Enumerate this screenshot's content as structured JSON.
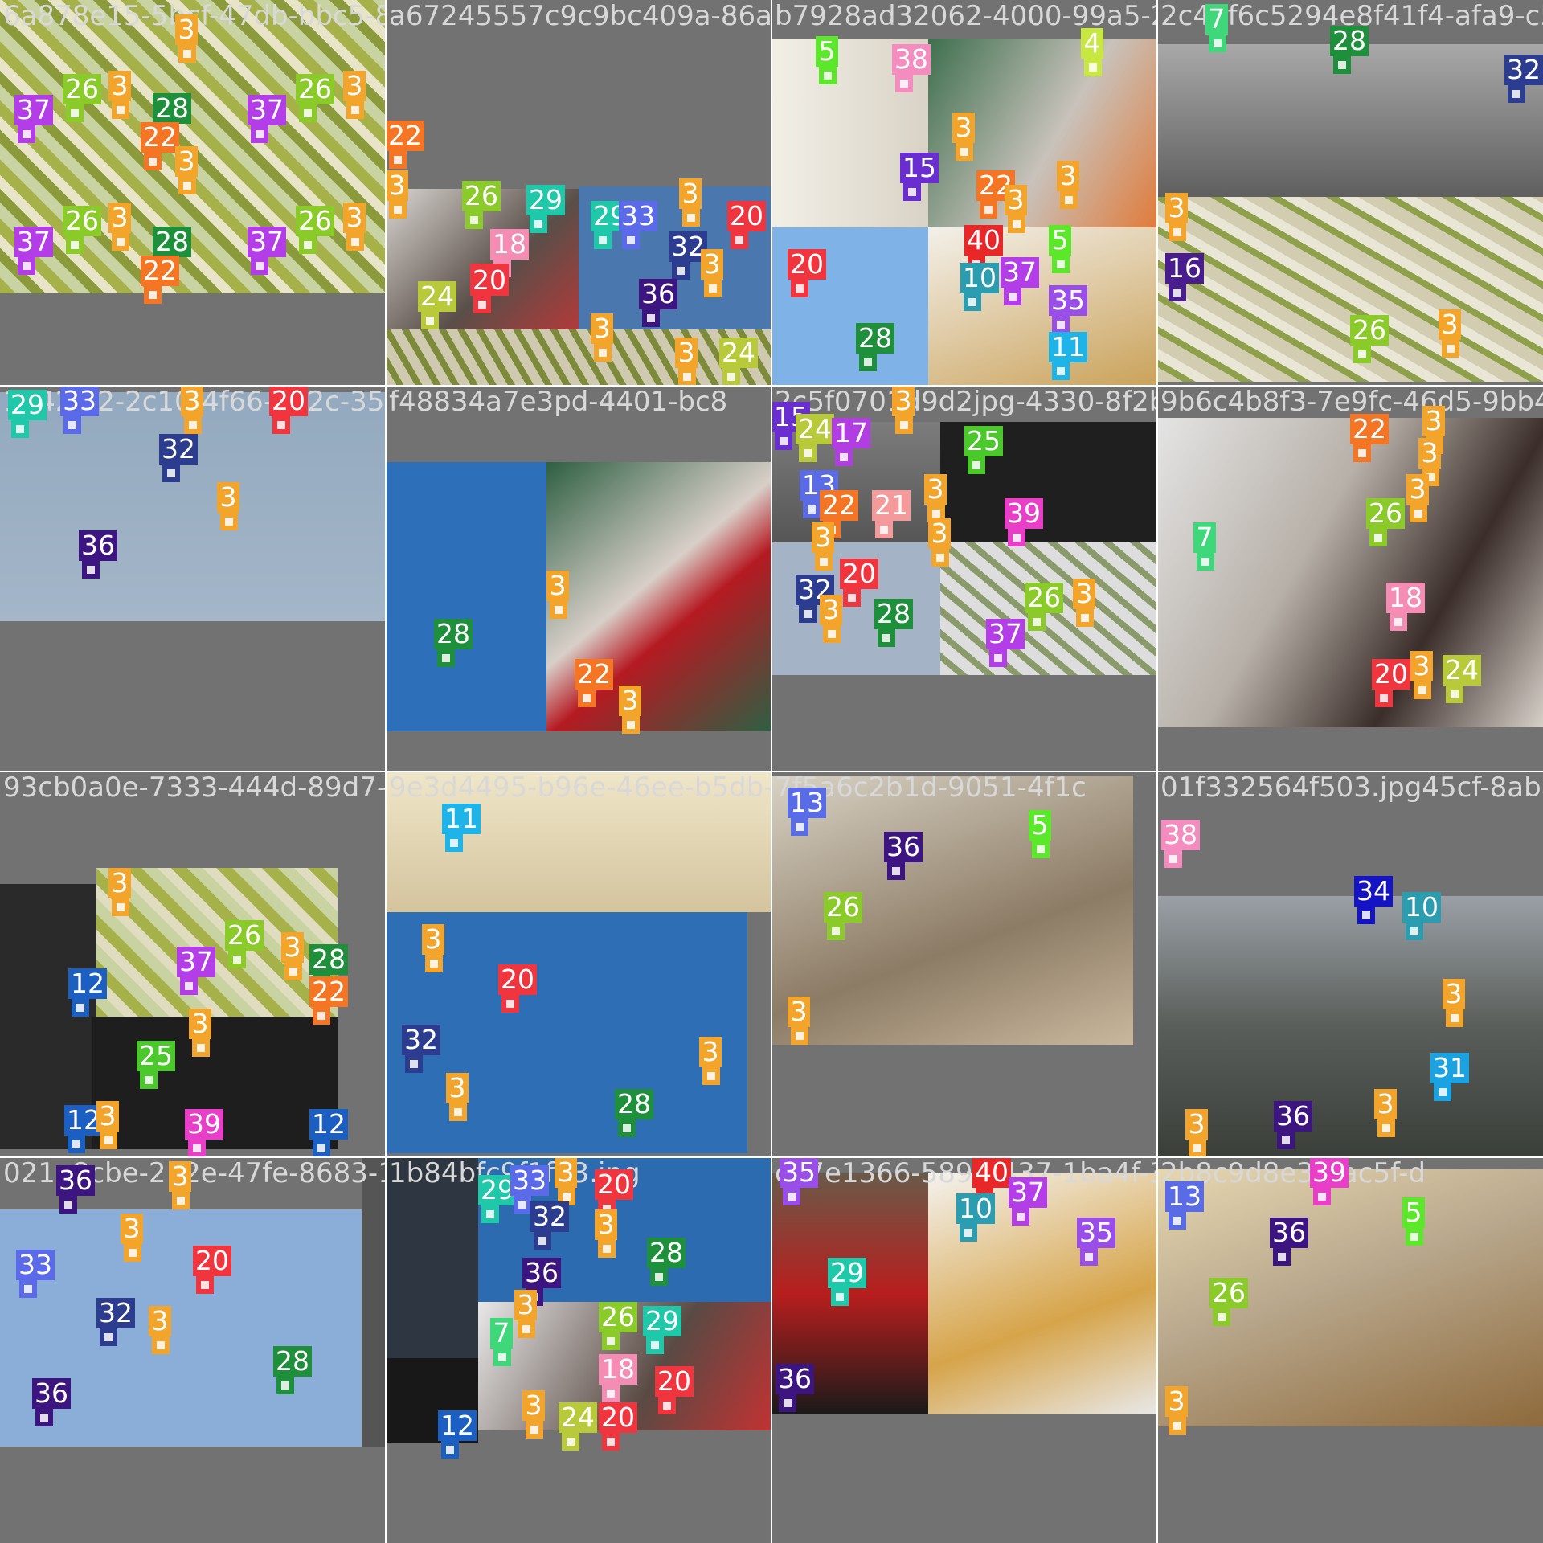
{
  "tiles": [
    {
      "filename": "6a878e15-5bcf-47db-bbc5-8",
      "labels": [
        "3",
        "26",
        "3",
        "26",
        "3",
        "37",
        "28",
        "37",
        "22",
        "3",
        "26",
        "3",
        "26",
        "3",
        "37",
        "28",
        "37",
        "22"
      ]
    },
    {
      "filename": "a67245557c9c9bc409a-86a8-6",
      "labels": [
        "22",
        "3",
        "26",
        "29",
        "29",
        "33",
        "3",
        "20",
        "18",
        "20",
        "32",
        "3",
        "24",
        "20",
        "36",
        "3",
        "3",
        "24"
      ]
    },
    {
      "filename": "b7928ad32062-4000-99a5-2",
      "labels": [
        "5",
        "38",
        "3",
        "4",
        "15",
        "22",
        "3",
        "3",
        "20",
        "40",
        "5",
        "10",
        "37",
        "35",
        "28",
        "11"
      ]
    },
    {
      "filename": "2c45f6c5294e8f41f4-afa9-c5",
      "labels": [
        "7",
        "28",
        "32",
        "3",
        "16",
        "26",
        "3"
      ]
    },
    {
      "filename": "1242cf2-2c10-4f66-a52c-35",
      "labels": [
        "29",
        "33",
        "3",
        "20",
        "32",
        "3",
        "36"
      ]
    },
    {
      "filename": "f48834a7e3pd-4401-bc8",
      "labels": [
        "3",
        "28",
        "22",
        "3"
      ]
    },
    {
      "filename": "2c5f0701d9d2jpg-4330-8f2b-2",
      "labels": [
        "15",
        "24",
        "17",
        "3",
        "25",
        "13",
        "22",
        "21",
        "3",
        "3",
        "39",
        "3",
        "20",
        "32",
        "3",
        "28",
        "26",
        "3",
        "37"
      ]
    },
    {
      "filename": "9b6c4b8f3-7e9fc-46d5-9bb4",
      "labels": [
        "22",
        "3",
        "3",
        "3",
        "26",
        "7",
        "18",
        "3",
        "24",
        "20"
      ]
    },
    {
      "filename": "93cb0a0e-7333-444d-89d7-9e3",
      "labels": [
        "3",
        "26",
        "3",
        "37",
        "28",
        "22",
        "12",
        "3",
        "25",
        "12",
        "3",
        "39",
        "12"
      ]
    },
    {
      "filename": "9e3d4495-b96e-46ee-b5db-3",
      "labels": [
        "11",
        "3",
        "20",
        "32",
        "3",
        "28",
        "3"
      ]
    },
    {
      "filename": "7f5a6c2b1d-9051-4f1c",
      "labels": [
        "13",
        "36",
        "5",
        "26",
        "3"
      ]
    },
    {
      "filename": "01f332564f503.jpg45cf-8aba-96",
      "labels": [
        "38",
        "34",
        "10",
        "3",
        "31",
        "36",
        "3",
        "3"
      ]
    },
    {
      "filename": "021e8cbe-212e-47fe-8683-1",
      "labels": [
        "36",
        "3",
        "33",
        "3",
        "20",
        "32",
        "3",
        "28",
        "36"
      ]
    },
    {
      "filename": "1b84bfc9f1f33.jpg",
      "labels": [
        "3",
        "29",
        "33",
        "20",
        "32",
        "3",
        "28",
        "36",
        "3",
        "26",
        "29",
        "7",
        "18",
        "20",
        "3",
        "24",
        "20",
        "12"
      ]
    },
    {
      "filename": "c27e1366-5890-437-1ba4f-3c",
      "labels": [
        "35",
        "40",
        "37",
        "10",
        "35",
        "29",
        "36"
      ]
    },
    {
      "filename": "2b8c9d8e35-ac5f-d",
      "labels": [
        "39",
        "13",
        "5",
        "36",
        "26",
        "3"
      ]
    }
  ],
  "colors": {
    "1": "#ff3838",
    "3": "#f3a42b",
    "4": "#c8e83f",
    "5": "#5ce82a",
    "7": "#3ed87a",
    "10": "#2b9db0",
    "11": "#1fb4e8",
    "12": "#1c5fc2",
    "13": "#5a6be6",
    "15": "#6a2ed0",
    "16": "#4a1d8f",
    "17": "#b03ee0",
    "18": "#f58cb4",
    "20": "#f0353e",
    "21": "#f59a9a",
    "22": "#f47625",
    "24": "#b8c93a",
    "25": "#4bc82b",
    "26": "#8acb2a",
    "28": "#1e8f3a",
    "29": "#1ec8a8",
    "31": "#1aa3e0",
    "32": "#2c3c8f",
    "33": "#5a6ae8",
    "34": "#1414c4",
    "35": "#9a4ee8",
    "36": "#3c1580",
    "37": "#b33ee8",
    "38": "#f58cc0",
    "39": "#e83ec8",
    "40": "#e82828"
  }
}
